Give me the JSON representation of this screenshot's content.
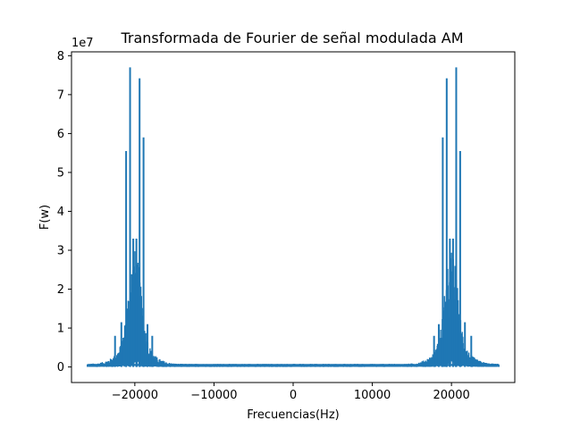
{
  "chart_data": {
    "type": "line",
    "title": "Transformada de Fourier de señal modulada AM",
    "xlabel": "Frecuencias(Hz)",
    "ylabel": "F(w)",
    "y_multiplier_label": "1e7",
    "xlim": [
      -28000,
      28000
    ],
    "ylim": [
      -0.4,
      8.1
    ],
    "x_ticks": [
      -20000,
      -10000,
      0,
      10000,
      20000
    ],
    "x_tick_labels": [
      "−20000",
      "−10000",
      "0",
      "10000",
      "20000"
    ],
    "y_ticks": [
      0,
      1,
      2,
      3,
      4,
      5,
      6,
      7,
      8
    ],
    "y_tick_labels": [
      "0",
      "1",
      "2",
      "3",
      "4",
      "5",
      "6",
      "7",
      "8"
    ],
    "grid": false,
    "series": [
      {
        "color": "#1f77b4",
        "x_range": [
          -26000,
          26000
        ],
        "peaks": [
          {
            "x": -22500,
            "y": 0.8
          },
          {
            "x": -21700,
            "y": 1.15
          },
          {
            "x": -21100,
            "y": 5.55
          },
          {
            "x": -20600,
            "y": 7.7
          },
          {
            "x": -20200,
            "y": 3.3
          },
          {
            "x": -19800,
            "y": 3.3
          },
          {
            "x": -19400,
            "y": 7.42
          },
          {
            "x": -18900,
            "y": 5.9
          },
          {
            "x": -18400,
            "y": 1.1
          },
          {
            "x": -17800,
            "y": 0.8
          },
          {
            "x": 17800,
            "y": 0.8
          },
          {
            "x": 18400,
            "y": 1.1
          },
          {
            "x": 18900,
            "y": 5.9
          },
          {
            "x": 19400,
            "y": 7.42
          },
          {
            "x": 19800,
            "y": 3.3
          },
          {
            "x": 20200,
            "y": 3.3
          },
          {
            "x": 20600,
            "y": 7.7
          },
          {
            "x": 21100,
            "y": 5.55
          },
          {
            "x": 21700,
            "y": 1.15
          },
          {
            "x": 22500,
            "y": 0.8
          }
        ]
      }
    ]
  }
}
